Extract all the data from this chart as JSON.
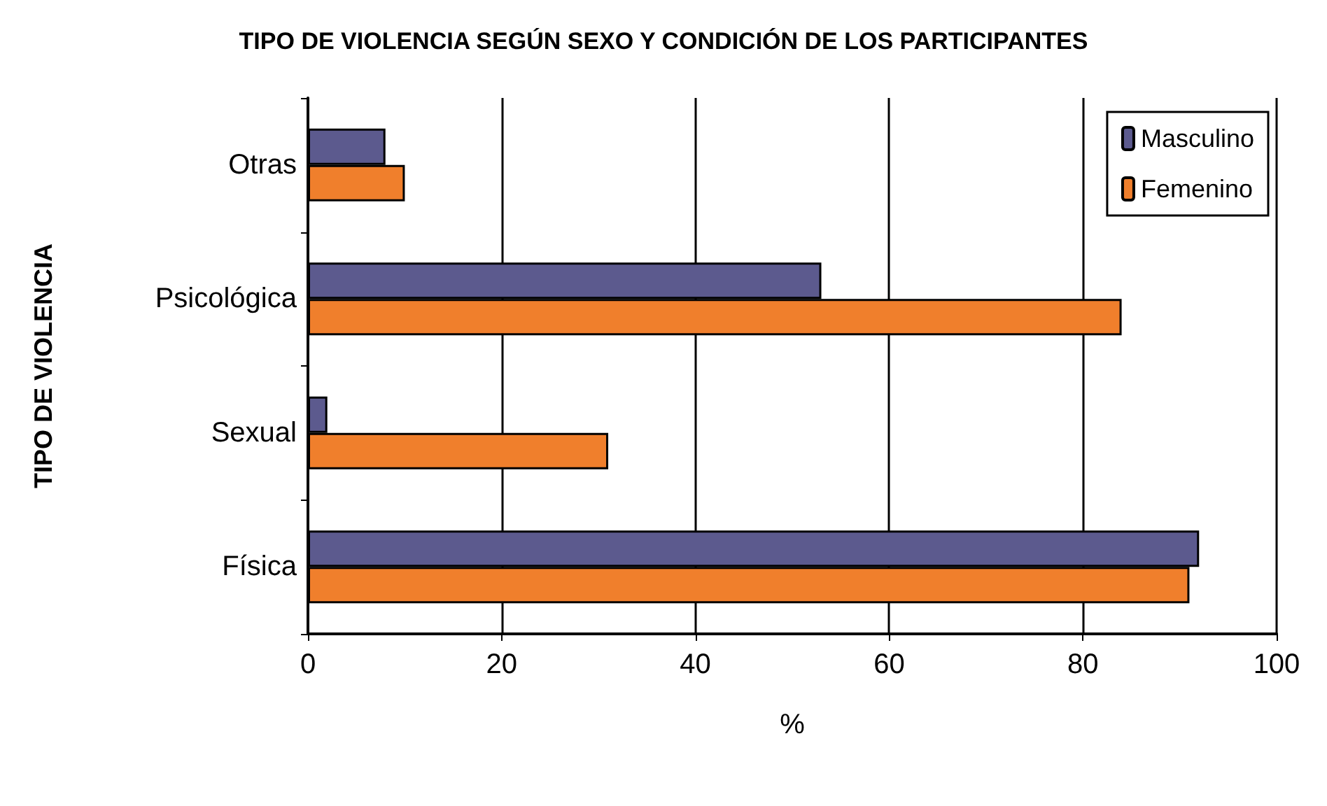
{
  "chart_data": {
    "type": "bar",
    "orientation": "horizontal",
    "title": "TIPO DE VIOLENCIA SEGÚN SEXO Y CONDICIÓN DE LOS PARTICIPANTES",
    "xlabel": "%",
    "ylabel": "TIPO DE VIOLENCIA",
    "categories": [
      "Otras",
      "Psicológica",
      "Sexual",
      "Física"
    ],
    "series": [
      {
        "name": "Masculino",
        "color": "#5c5a8e",
        "values": [
          8,
          53,
          2,
          92
        ]
      },
      {
        "name": "Femenino",
        "color": "#f07f2c",
        "values": [
          10,
          84,
          31,
          91
        ]
      }
    ],
    "xlim": [
      0,
      100
    ],
    "xticks": [
      0,
      20,
      40,
      60,
      80,
      100
    ],
    "grid": "x",
    "legend": "top right"
  }
}
